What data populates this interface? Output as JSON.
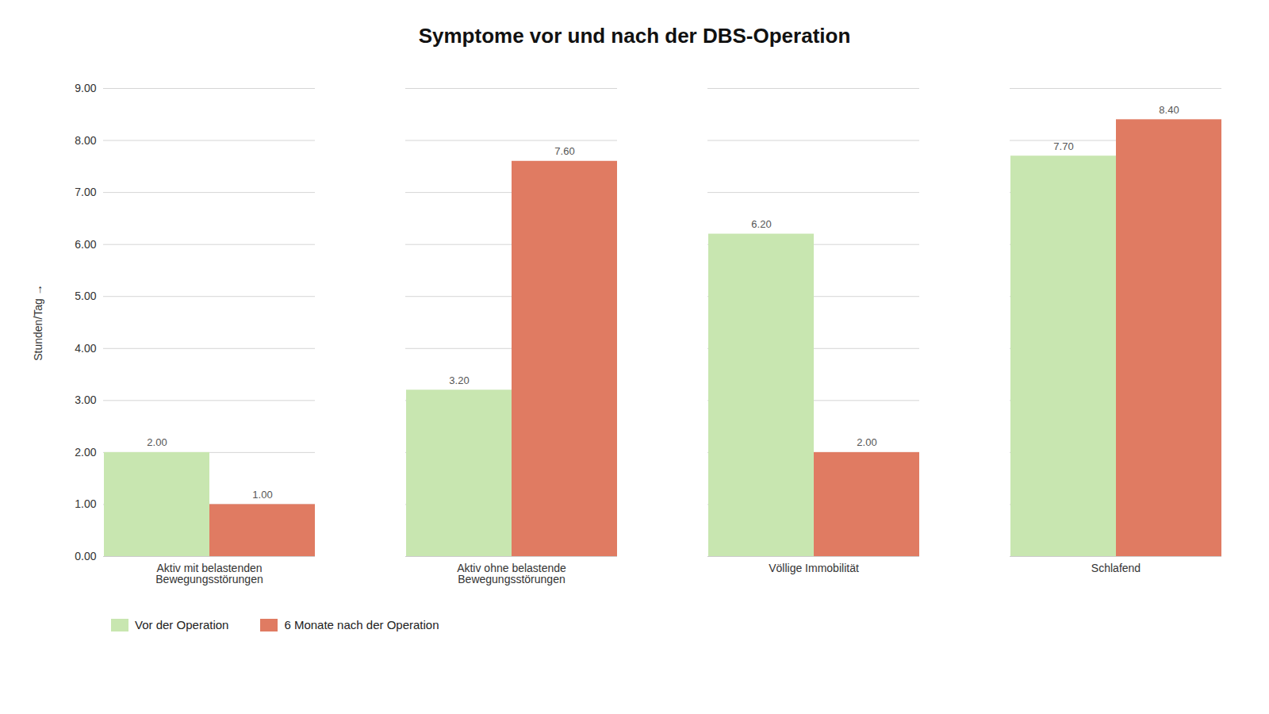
{
  "chart_data": {
    "type": "bar",
    "title": "Symptome vor und nach der DBS-Operation",
    "categories": [
      "Aktiv mit belastenden\nBewegungsstörungen",
      "Aktiv ohne belastende\nBewegungsstörungen",
      "Völlige Immobilität",
      "Schlafend"
    ],
    "series": [
      {
        "name": "Vor der Operation",
        "color": "#c8e6b0",
        "values": [
          2.0,
          3.2,
          6.2,
          7.7
        ],
        "value_labels": [
          "2.00",
          "3.20",
          "6.20",
          "7.70"
        ]
      },
      {
        "name": "6 Monate nach der Operation",
        "color": "#e07b62",
        "values": [
          1.0,
          7.6,
          2.0,
          8.4
        ],
        "value_labels": [
          "1.00",
          "7.60",
          "2.00",
          "8.40"
        ]
      }
    ],
    "ylabel": "Stunden/Tag",
    "ylim": [
      0,
      9.0
    ],
    "yticks": [
      {
        "value": 0,
        "label": "0.00"
      },
      {
        "value": 1,
        "label": "1.00"
      },
      {
        "value": 2,
        "label": "2.00"
      },
      {
        "value": 3,
        "label": "3.00"
      },
      {
        "value": 4,
        "label": "4.00"
      },
      {
        "value": 5,
        "label": "5.00"
      },
      {
        "value": 6,
        "label": "6.00"
      },
      {
        "value": 7,
        "label": "7.00"
      },
      {
        "value": 8,
        "label": "8.00"
      },
      {
        "value": 9,
        "label": "9.00"
      }
    ],
    "grid": true,
    "data_labels": true,
    "legend": "bottom"
  }
}
